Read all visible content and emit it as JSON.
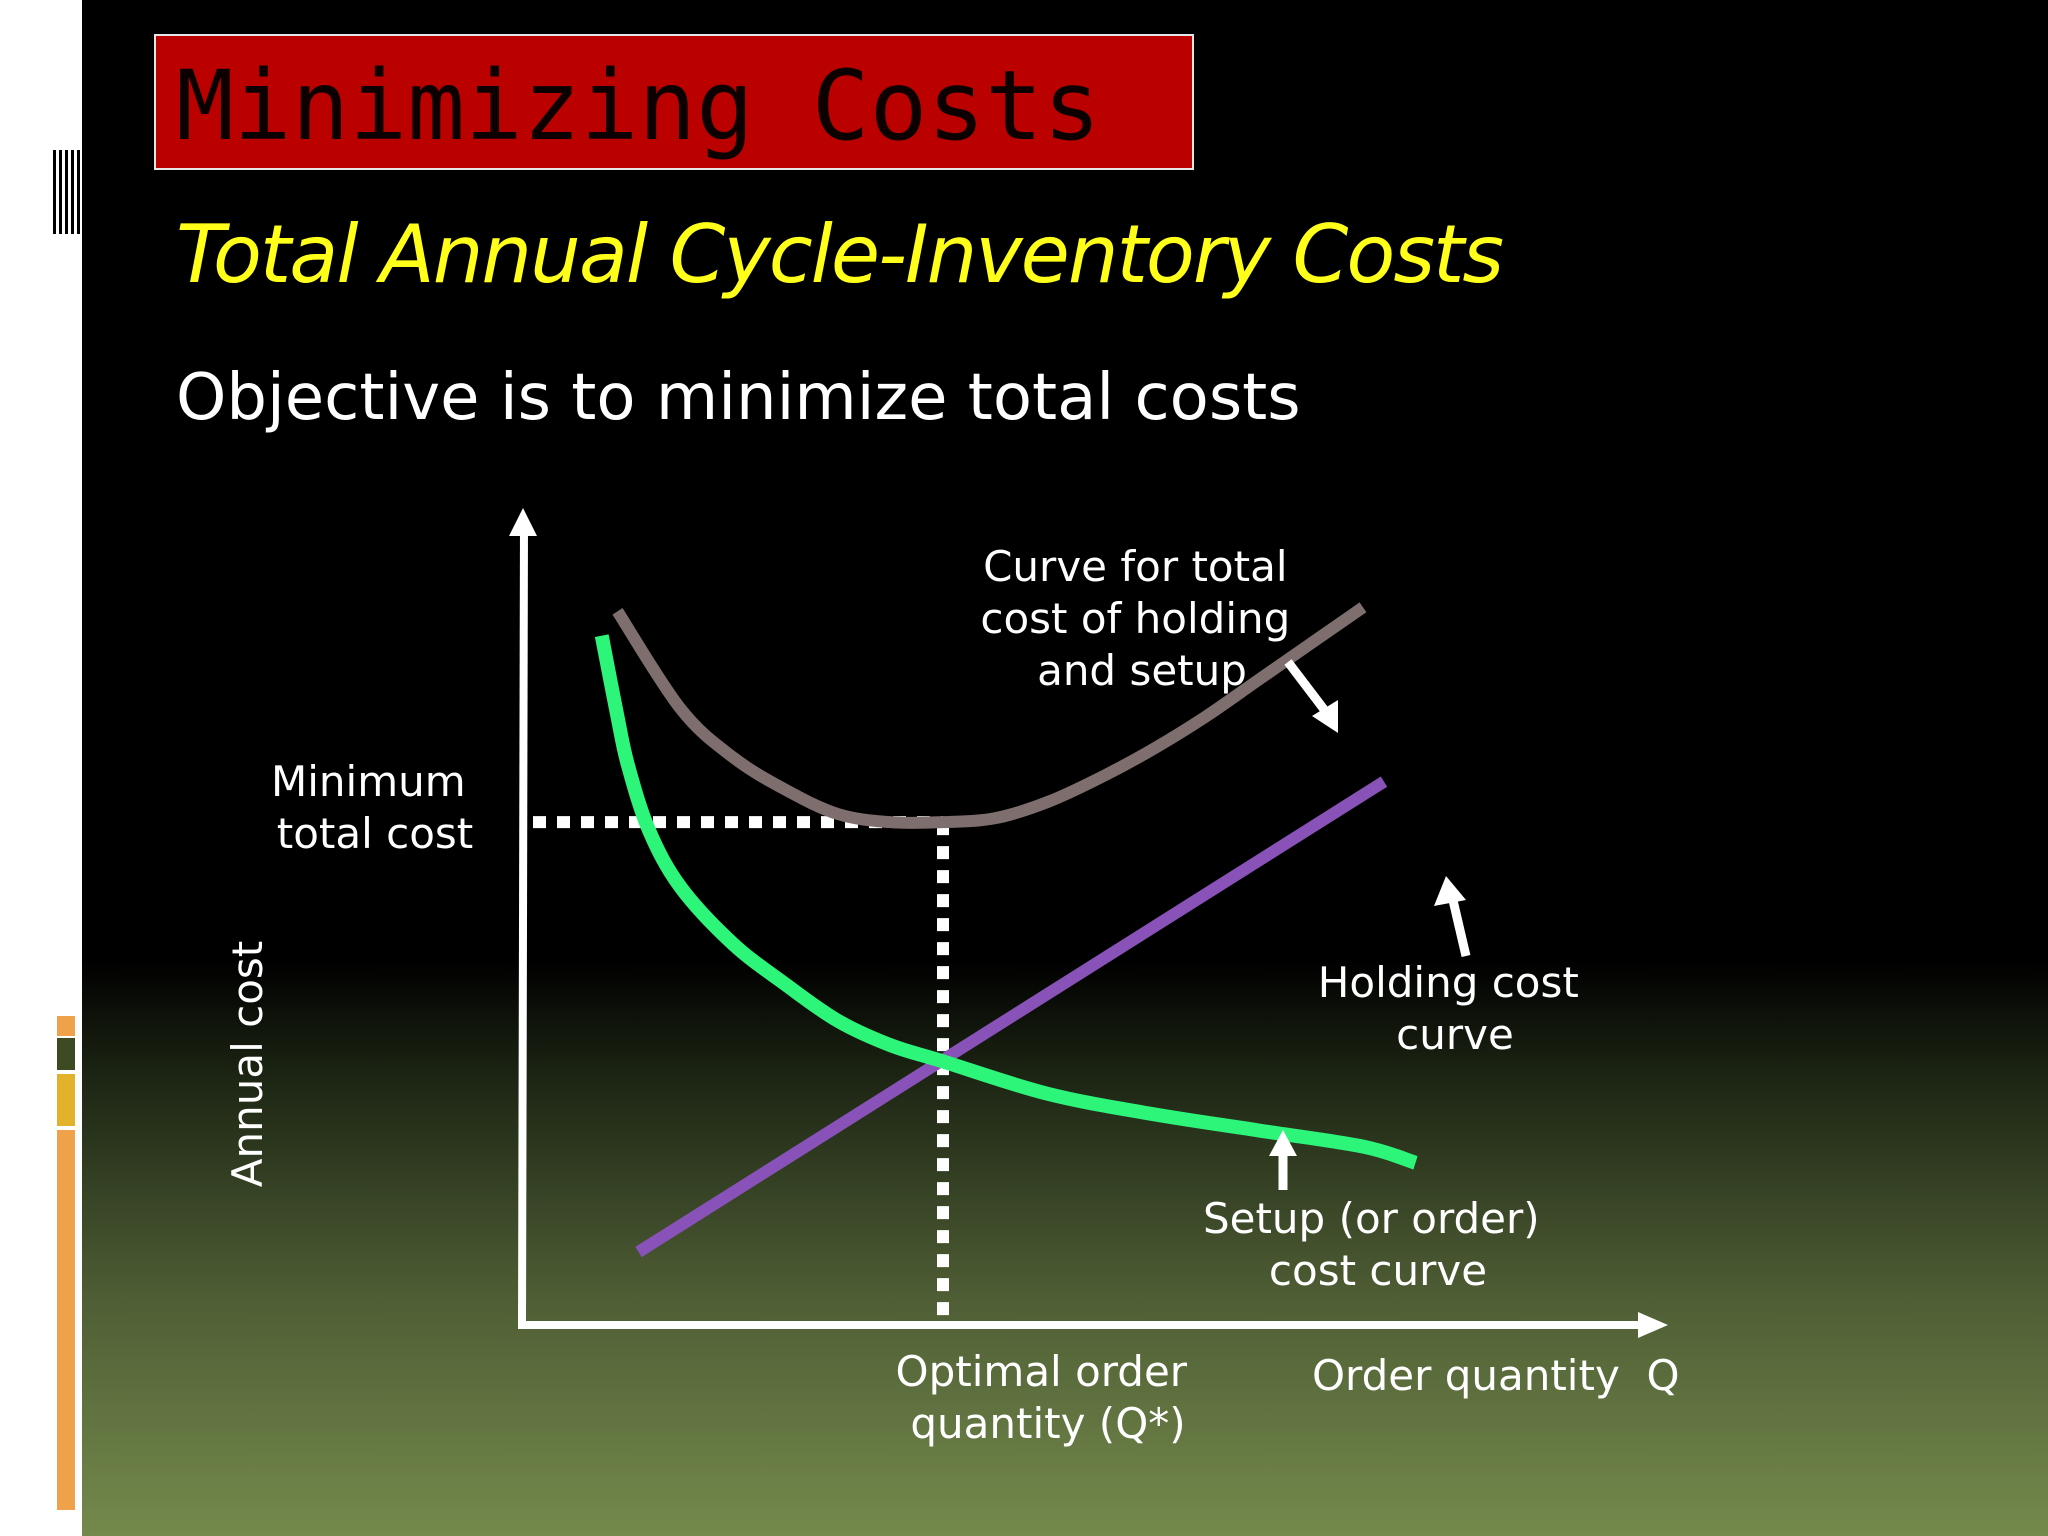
{
  "slide": {
    "title": "Minimizing Costs",
    "subtitle": "Total Annual Cycle-Inventory Costs",
    "objective": "Objective is to minimize total costs"
  },
  "colors": {
    "title_bg": "#bb0000",
    "subtitle": "#ffff1a",
    "total_cost": "#7e6e6e",
    "holding_cost": "#8852b8",
    "setup_cost": "#2cf57a"
  },
  "chart_data": {
    "type": "line",
    "xlabel": "Order quantity  Q",
    "ylabel": "Annual cost",
    "xlim": [
      0,
      10
    ],
    "ylim": [
      0,
      10
    ],
    "optimal_q": 4,
    "min_total_cost": 6.2,
    "series": [
      {
        "name": "Curve for total cost of holding and setup",
        "color": "#7e6e6e",
        "x": [
          0.9,
          1.5,
          2.0,
          2.5,
          3.0,
          3.5,
          4.0,
          4.5,
          5.0,
          5.5,
          6.0,
          6.5,
          7.0,
          7.5,
          8.0
        ],
        "y": [
          8.8,
          7.6,
          7.0,
          6.6,
          6.3,
          6.2,
          6.2,
          6.25,
          6.45,
          6.75,
          7.1,
          7.5,
          7.95,
          8.4,
          8.85
        ]
      },
      {
        "name": "Holding cost curve",
        "color": "#8852b8",
        "x": [
          1.1,
          8.2
        ],
        "y": [
          0.9,
          6.7
        ]
      },
      {
        "name": "Setup (or order) cost curve",
        "color": "#2cf57a",
        "x": [
          0.75,
          0.9,
          1.0,
          1.2,
          1.5,
          2.0,
          2.5,
          3.0,
          3.5,
          4.0,
          5.0,
          6.0,
          7.0,
          8.0,
          8.5
        ],
        "y": [
          8.5,
          7.5,
          6.9,
          6.1,
          5.4,
          4.7,
          4.2,
          3.75,
          3.45,
          3.25,
          2.85,
          2.6,
          2.4,
          2.2,
          2.0
        ]
      }
    ],
    "annotations": {
      "min_total_cost": [
        "Minimum",
        "total cost"
      ],
      "optimal_q": [
        "Optimal order",
        "quantity (Q*)"
      ],
      "total_curve": [
        "Curve for total",
        "cost of holding",
        "and setup"
      ],
      "holding_curve": [
        "Holding cost",
        "curve"
      ],
      "setup_curve": [
        "Setup (or order)",
        "cost curve"
      ]
    }
  }
}
